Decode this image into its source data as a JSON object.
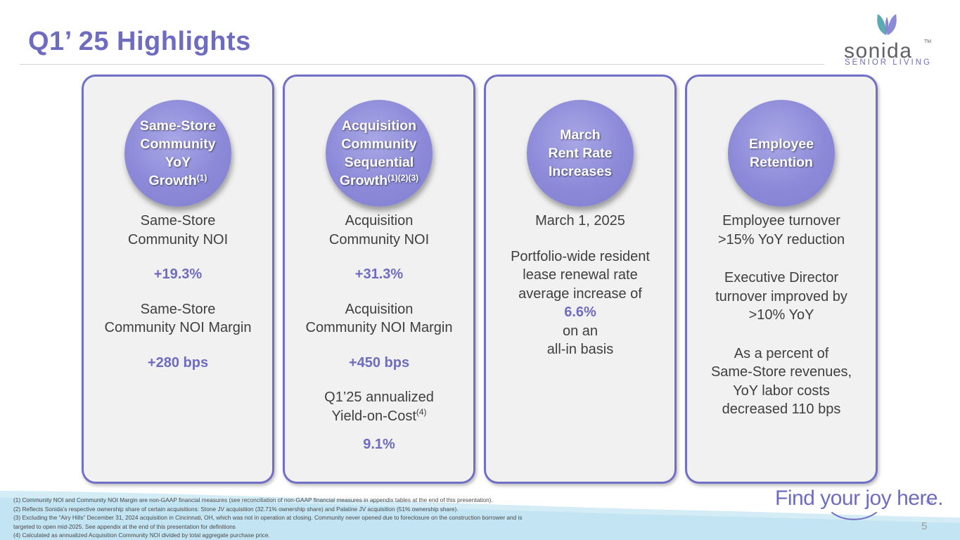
{
  "header": {
    "title": "Q1’ 25 Highlights"
  },
  "logo": {
    "wordmark": "sonida",
    "trademark": "TM",
    "tagline": "SENIOR LIVING"
  },
  "cards": [
    {
      "badge": {
        "lines": [
          "Same-Store",
          "Community",
          "YoY"
        ],
        "last": "Growth",
        "sup": "(1)"
      },
      "label1": [
        "Same-Store",
        "Community NOI"
      ],
      "value1": "+19.3%",
      "label2": [
        "Same-Store",
        "Community NOI Margin"
      ],
      "value2": "+280 bps"
    },
    {
      "badge": {
        "lines": [
          "Acquisition",
          "Community",
          "Sequential"
        ],
        "last": "Growth",
        "sup": "(1)(2)(3)"
      },
      "label1": [
        "Acquisition",
        "Community NOI"
      ],
      "value1": "+31.3%",
      "label2": [
        "Acquisition",
        "Community NOI Margin"
      ],
      "value2": "+450 bps",
      "label3": [
        "Q1’25 annualized",
        "Yield-on-Cost"
      ],
      "label3_sup": "(4)",
      "value3": "9.1%"
    },
    {
      "badge": {
        "lines": [
          "March",
          "Rent Rate",
          "Increases"
        ]
      },
      "date": "March 1, 2025",
      "body_lines": [
        "Portfolio-wide resident",
        "lease renewal rate",
        "average increase of"
      ],
      "value": "6.6%",
      "tail_lines": [
        "on an",
        "all-in basis"
      ]
    },
    {
      "badge": {
        "lines": [
          "Employee",
          "Retention"
        ]
      },
      "block1": [
        "Employee turnover",
        ">15% YoY reduction"
      ],
      "block2": [
        "Executive Director",
        "turnover improved by",
        ">10% YoY"
      ],
      "block3": [
        "As a percent of",
        "Same-Store revenues,",
        "YoY labor costs",
        "decreased 110 bps"
      ]
    }
  ],
  "footnotes": [
    "(1) Community NOI and Community NOI Margin are non-GAAP financial measures (see reconciliation of non-GAAP financial measures in appendix tables at the end of this presentation).",
    "(2) Reflects Sonida’s respective ownership share of certain acquisitions: Stone JV acquisition (32.71% ownership share) and Palatine JV acquisition (51% ownership share).",
    "(3) Excluding the “Airy Hills” December 31, 2024 acquisition in Cincinnati, OH, which was not in operation at closing. Community never opened due to foreclosure on the construction borrower and is",
    "targeted to open mid-2025. See appendix at the end of this presentation for definitions",
    "(4) Calculated as annualized Acquisition Community NOI divided by total aggregate purchase price."
  ],
  "slogan": "Find your joy here.",
  "slogan_tm": "TM",
  "page_number": "5",
  "colors": {
    "accent": "#6e6cc0",
    "card_border": "#7270c6",
    "badge": "#8c8ad8",
    "card_bg": "#f1f1f1",
    "footer_wave": "#cfe9f4"
  }
}
